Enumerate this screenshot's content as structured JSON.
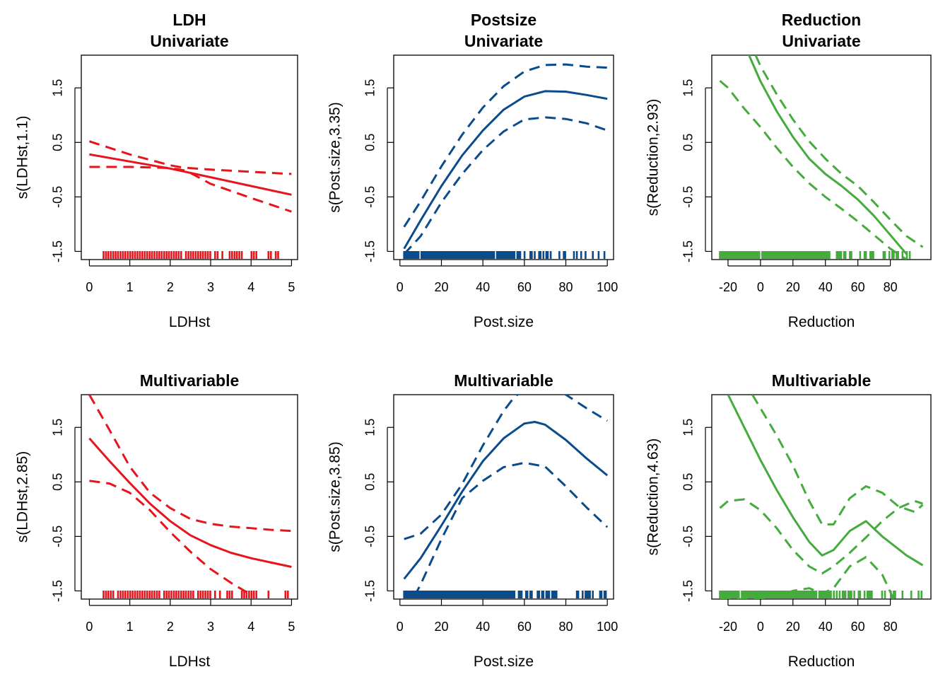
{
  "colors": {
    "ldh": "#E8141C",
    "postsize": "#0A4B8C",
    "reduction": "#45AB3C"
  },
  "chart_data": [
    {
      "type": "line",
      "title_lines": [
        "LDH",
        "Univariate"
      ],
      "xlabel": "LDHst",
      "ylabel": "s(LDHst,1.1)",
      "xlim": [
        -0.2,
        5.15
      ],
      "ylim": [
        -1.65,
        2.1
      ],
      "xticks": [
        0,
        1,
        2,
        3,
        4,
        5
      ],
      "xtick_labels": [
        "0",
        "1",
        "2",
        "3",
        "4",
        "5"
      ],
      "yticks": [
        -1.5,
        -0.5,
        0.5,
        1.5
      ],
      "ytick_labels": [
        "-1.5",
        "-0.5",
        "0.5",
        "1.5"
      ],
      "color_key": "ldh",
      "series": [
        {
          "role": "estimate",
          "x": [
            0,
            1,
            2,
            3,
            4,
            5
          ],
          "y": [
            0.28,
            0.15,
            0.02,
            -0.14,
            -0.3,
            -0.46
          ]
        },
        {
          "role": "upper",
          "x": [
            0,
            1,
            2,
            2.3,
            3,
            4,
            5
          ],
          "y": [
            0.52,
            0.28,
            0.08,
            0.04,
            0.0,
            -0.04,
            -0.08
          ]
        },
        {
          "role": "lower",
          "x": [
            0,
            1,
            2,
            2.4,
            3,
            4,
            5
          ],
          "y": [
            0.05,
            0.05,
            0.03,
            -0.02,
            -0.26,
            -0.52,
            -0.77
          ]
        }
      ],
      "rug": {
        "x0": 0.35,
        "x1": 5.15,
        "step": 0.06
      }
    },
    {
      "type": "line",
      "title_lines": [
        "Postsize",
        "Univariate"
      ],
      "xlabel": "Post.size",
      "ylabel": "s(Post.size,3.35)",
      "xlim": [
        -3,
        103
      ],
      "ylim": [
        -1.65,
        2.1
      ],
      "xticks": [
        0,
        20,
        40,
        60,
        80,
        100
      ],
      "xtick_labels": [
        "0",
        "20",
        "40",
        "60",
        "80",
        "100"
      ],
      "yticks": [
        -1.5,
        -0.5,
        0.5,
        1.5
      ],
      "ytick_labels": [
        "-1.5",
        "-0.5",
        "0.5",
        "1.5"
      ],
      "color_key": "postsize",
      "series": [
        {
          "role": "estimate",
          "x": [
            2,
            10,
            20,
            30,
            40,
            50,
            60,
            70,
            80,
            90,
            100
          ],
          "y": [
            -1.45,
            -0.93,
            -0.3,
            0.26,
            0.72,
            1.1,
            1.34,
            1.44,
            1.43,
            1.37,
            1.3
          ]
        },
        {
          "role": "upper",
          "x": [
            2,
            10,
            20,
            30,
            40,
            50,
            60,
            70,
            80,
            90,
            100
          ],
          "y": [
            -1.05,
            -0.58,
            0.06,
            0.64,
            1.14,
            1.53,
            1.8,
            1.92,
            1.93,
            1.89,
            1.87
          ]
        },
        {
          "role": "lower",
          "x": [
            2,
            10,
            20,
            30,
            40,
            50,
            60,
            70,
            80,
            90,
            100
          ],
          "y": [
            -1.55,
            -1.22,
            -0.6,
            -0.08,
            0.36,
            0.7,
            0.92,
            0.96,
            0.93,
            0.85,
            0.72
          ]
        }
      ],
      "rug": {
        "x0": 2,
        "x1": 100,
        "step": 0.7
      }
    },
    {
      "type": "line",
      "title_lines": [
        "Reduction",
        "Univariate"
      ],
      "xlabel": "Reduction",
      "ylabel": "s(Reduction,2.93)",
      "xlim": [
        -30,
        105
      ],
      "ylim": [
        -1.65,
        2.1
      ],
      "xticks": [
        -20,
        0,
        20,
        40,
        60,
        80
      ],
      "xtick_labels": [
        "-20",
        "0",
        "20",
        "40",
        "60",
        "80"
      ],
      "yticks": [
        -1.5,
        -0.5,
        0.5,
        1.5
      ],
      "ytick_labels": [
        "-1.5",
        "-0.5",
        "0.5",
        "1.5"
      ],
      "color_key": "reduction",
      "series": [
        {
          "role": "estimate",
          "x": [
            -10,
            0,
            10,
            20,
            30,
            40,
            50,
            60,
            70,
            80,
            90
          ],
          "y": [
            2.3,
            1.62,
            1.07,
            0.6,
            0.2,
            -0.08,
            -0.3,
            -0.55,
            -0.85,
            -1.2,
            -1.55
          ]
        },
        {
          "role": "upper",
          "x": [
            -3,
            0,
            10,
            20,
            30,
            40,
            50,
            60,
            70,
            80,
            90,
            100
          ],
          "y": [
            2.1,
            1.9,
            1.38,
            0.92,
            0.52,
            0.2,
            -0.08,
            -0.3,
            -0.6,
            -0.92,
            -1.22,
            -1.42
          ]
        },
        {
          "role": "lower",
          "x": [
            -25,
            -20,
            -10,
            0,
            10,
            20,
            30,
            40,
            50,
            60,
            70,
            80,
            90
          ],
          "y": [
            1.63,
            1.5,
            1.12,
            0.78,
            0.4,
            0.05,
            -0.25,
            -0.5,
            -0.72,
            -0.95,
            -1.2,
            -1.45,
            -1.65
          ]
        }
      ],
      "rug": {
        "x0": -25,
        "x1": 93,
        "step": 0.9
      }
    },
    {
      "type": "line",
      "title_lines": [
        "Multivariable"
      ],
      "xlabel": "LDHst",
      "ylabel": "s(LDHst,2.85)",
      "xlim": [
        -0.2,
        5.15
      ],
      "ylim": [
        -1.65,
        2.1
      ],
      "xticks": [
        0,
        1,
        2,
        3,
        4,
        5
      ],
      "xtick_labels": [
        "0",
        "1",
        "2",
        "3",
        "4",
        "5"
      ],
      "yticks": [
        -1.5,
        -0.5,
        0.5,
        1.5
      ],
      "ytick_labels": [
        "-1.5",
        "-0.5",
        "0.5",
        "1.5"
      ],
      "color_key": "ldh",
      "series": [
        {
          "role": "estimate",
          "x": [
            0,
            0.5,
            1,
            1.5,
            2,
            2.5,
            3,
            3.5,
            4,
            4.5,
            5
          ],
          "y": [
            1.3,
            0.88,
            0.48,
            0.1,
            -0.22,
            -0.48,
            -0.66,
            -0.8,
            -0.9,
            -0.98,
            -1.06
          ]
        },
        {
          "role": "upper",
          "x": [
            0,
            0.5,
            1,
            1.5,
            2,
            2.5,
            3,
            3.5,
            4,
            4.5,
            5
          ],
          "y": [
            2.1,
            1.45,
            0.78,
            0.3,
            0.02,
            -0.18,
            -0.27,
            -0.32,
            -0.35,
            -0.38,
            -0.4
          ]
        },
        {
          "role": "lower",
          "x": [
            0,
            0.5,
            1,
            1.5,
            2,
            2.5,
            3,
            3.5,
            3.95
          ],
          "y": [
            0.52,
            0.47,
            0.3,
            -0.02,
            -0.42,
            -0.78,
            -1.1,
            -1.35,
            -1.55
          ]
        }
      ],
      "rug": {
        "x0": 0.35,
        "x1": 5.15,
        "step": 0.06
      }
    },
    {
      "type": "line",
      "title_lines": [
        "Multivariable"
      ],
      "xlabel": "Post.size",
      "ylabel": "s(Post.size,3.85)",
      "xlim": [
        -3,
        103
      ],
      "ylim": [
        -1.65,
        2.1
      ],
      "xticks": [
        0,
        20,
        40,
        60,
        80,
        100
      ],
      "xtick_labels": [
        "0",
        "20",
        "40",
        "60",
        "80",
        "100"
      ],
      "yticks": [
        -1.5,
        -0.5,
        0.5,
        1.5
      ],
      "ytick_labels": [
        "-1.5",
        "-0.5",
        "0.5",
        "1.5"
      ],
      "color_key": "postsize",
      "series": [
        {
          "role": "estimate",
          "x": [
            2,
            10,
            20,
            30,
            40,
            50,
            60,
            65,
            70,
            80,
            90,
            100
          ],
          "y": [
            -1.28,
            -0.9,
            -0.3,
            0.32,
            0.88,
            1.3,
            1.57,
            1.6,
            1.55,
            1.27,
            0.93,
            0.62
          ]
        },
        {
          "role": "upper",
          "x": [
            2,
            10,
            20,
            30,
            40,
            50,
            55,
            60,
            70,
            80,
            90,
            100
          ],
          "y": [
            -0.55,
            -0.45,
            -0.1,
            0.46,
            1.17,
            1.8,
            2.05,
            2.2,
            2.25,
            2.1,
            1.85,
            1.62
          ]
        },
        {
          "role": "lower",
          "x": [
            7,
            10,
            20,
            30,
            40,
            50,
            60,
            70,
            80,
            90,
            100
          ],
          "y": [
            -1.6,
            -1.38,
            -0.55,
            0.2,
            0.52,
            0.77,
            0.85,
            0.78,
            0.42,
            0.03,
            -0.33
          ]
        }
      ],
      "rug": {
        "x0": 2,
        "x1": 100,
        "step": 0.7
      }
    },
    {
      "type": "line",
      "title_lines": [
        "Multivariable"
      ],
      "xlabel": "Reduction",
      "ylabel": "s(Reduction,4.63)",
      "xlim": [
        -30,
        105
      ],
      "ylim": [
        -1.65,
        2.1
      ],
      "xticks": [
        -20,
        0,
        20,
        40,
        60,
        80
      ],
      "xtick_labels": [
        "-20",
        "0",
        "20",
        "40",
        "60",
        "80"
      ],
      "yticks": [
        -1.5,
        -0.5,
        0.5,
        1.5
      ],
      "ytick_labels": [
        "-1.5",
        "-0.5",
        "0.5",
        "1.5"
      ],
      "color_key": "reduction",
      "series": [
        {
          "role": "estimate",
          "x": [
            -20,
            -10,
            0,
            10,
            20,
            30,
            38,
            45,
            55,
            65,
            75,
            90,
            100
          ],
          "y": [
            2.1,
            1.5,
            0.9,
            0.35,
            -0.15,
            -0.6,
            -0.85,
            -0.75,
            -0.4,
            -0.22,
            -0.5,
            -0.85,
            -1.03
          ]
        },
        {
          "role": "upper",
          "x": [
            -25,
            -20,
            -10,
            0,
            10,
            20,
            30,
            38,
            45,
            55,
            65,
            75,
            85,
            95,
            100
          ],
          "y": [
            0.02,
            0.15,
            0.18,
            -0.02,
            -0.35,
            -0.75,
            -1.05,
            -1.18,
            -1.05,
            -0.8,
            -0.52,
            -0.22,
            0.02,
            0.15,
            0.1
          ]
        },
        {
          "role": "upper",
          "x": [
            -5,
            0,
            10,
            20,
            30,
            38,
            45,
            55,
            65,
            75,
            85,
            95,
            100
          ],
          "y": [
            2.1,
            1.85,
            1.35,
            0.8,
            0.15,
            -0.28,
            -0.28,
            0.2,
            0.42,
            0.3,
            0.05,
            -0.05,
            0.08
          ]
        },
        {
          "role": "lower",
          "x": [
            -25,
            -10,
            0,
            10,
            20,
            30,
            38,
            45,
            55,
            65,
            75,
            82
          ],
          "y": [
            -1.65,
            -1.65,
            -1.65,
            -1.6,
            -1.5,
            -1.45,
            -1.55,
            -1.45,
            -1.05,
            -0.88,
            -1.2,
            -1.65
          ]
        }
      ],
      "rug": {
        "x0": -25,
        "x1": 100,
        "step": 0.9
      }
    }
  ]
}
